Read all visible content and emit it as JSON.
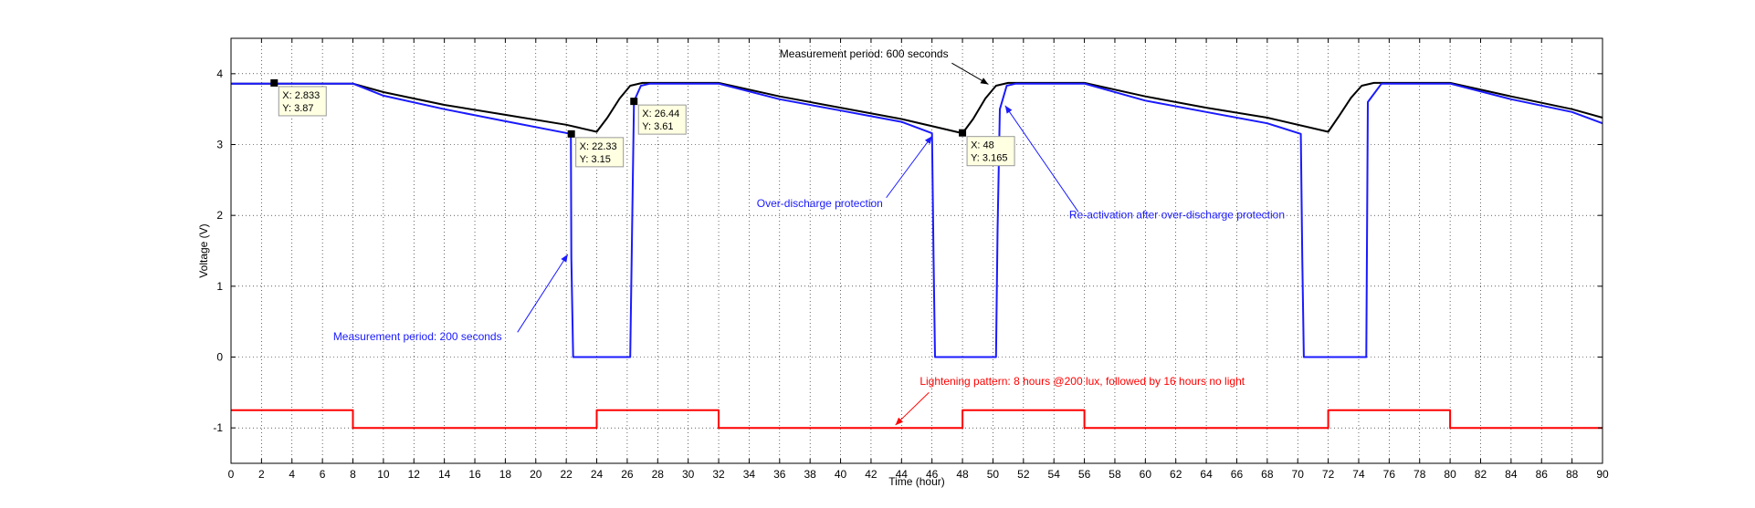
{
  "chart_data": {
    "type": "line",
    "title": "",
    "xlabel": "Time (hour)",
    "ylabel": "Voltage (V)",
    "xlim": [
      0,
      90
    ],
    "ylim": [
      -1.5,
      4.5
    ],
    "x_ticks": [
      "0",
      "2",
      "4",
      "6",
      "8",
      "10",
      "12",
      "14",
      "16",
      "18",
      "20",
      "22",
      "24",
      "26",
      "28",
      "30",
      "32",
      "34",
      "36",
      "38",
      "40",
      "42",
      "44",
      "46",
      "48",
      "50",
      "52",
      "54",
      "56",
      "58",
      "60",
      "62",
      "64",
      "66",
      "68",
      "70",
      "72",
      "74",
      "76",
      "78",
      "80",
      "82",
      "84",
      "86",
      "88",
      "90"
    ],
    "y_ticks": [
      "-1",
      "0",
      "1",
      "2",
      "3",
      "4"
    ],
    "grid": true,
    "colors": {
      "measurement_200s": "#1a1aff",
      "measurement_600s": "#000000",
      "lightening_pattern": "#ff0000"
    },
    "series": [
      {
        "key": "measurement_600s",
        "x": [
          0,
          8,
          10,
          14,
          18,
          22,
          24,
          24.7,
          25.5,
          26.2,
          27,
          32,
          36,
          40,
          44,
          48,
          48.7,
          49.5,
          50.2,
          51,
          56,
          60,
          64,
          68,
          72,
          72.7,
          73.5,
          74.2,
          75,
          80,
          84,
          88,
          90
        ],
        "y": [
          3.86,
          3.86,
          3.74,
          3.56,
          3.42,
          3.28,
          3.18,
          3.38,
          3.65,
          3.83,
          3.87,
          3.87,
          3.68,
          3.52,
          3.36,
          3.16,
          3.36,
          3.65,
          3.83,
          3.87,
          3.87,
          3.68,
          3.52,
          3.38,
          3.18,
          3.4,
          3.66,
          3.83,
          3.87,
          3.87,
          3.68,
          3.5,
          3.38
        ]
      },
      {
        "key": "measurement_200s",
        "x": [
          0,
          8,
          10,
          14,
          18,
          22.3,
          22.33,
          22.45,
          26.2,
          26.44,
          26.9,
          27.5,
          32,
          36,
          40,
          44,
          46,
          46.1,
          46.2,
          50.2,
          50.3,
          50.45,
          50.9,
          51.5,
          56,
          60,
          64,
          68,
          70.2,
          70.3,
          70.4,
          74.5,
          74.6,
          75.5,
          80,
          84,
          88,
          90
        ],
        "y": [
          3.86,
          3.86,
          3.69,
          3.5,
          3.33,
          3.15,
          1.4,
          0,
          0,
          3.61,
          3.83,
          3.86,
          3.86,
          3.64,
          3.48,
          3.32,
          3.16,
          1.4,
          0,
          0,
          1.8,
          3.5,
          3.83,
          3.86,
          3.86,
          3.62,
          3.46,
          3.3,
          3.15,
          1.4,
          0,
          0,
          3.6,
          3.86,
          3.86,
          3.64,
          3.46,
          3.3
        ]
      },
      {
        "key": "lightening_pattern",
        "x": [
          0,
          8,
          8,
          24,
          24,
          32,
          32,
          48,
          48,
          56,
          56,
          72,
          72,
          80,
          80,
          90
        ],
        "y": [
          -0.75,
          -0.75,
          -1,
          -1,
          -0.75,
          -0.75,
          -1,
          -1,
          -0.75,
          -0.75,
          -1,
          -1,
          -0.75,
          -0.75,
          -1,
          -1
        ]
      }
    ],
    "data_tips": [
      {
        "x": 2.833,
        "y": 3.87,
        "x_text": "X: 2.833",
        "y_text": "Y: 3.87"
      },
      {
        "x": 22.33,
        "y": 3.15,
        "x_text": "X: 22.33",
        "y_text": "Y: 3.15"
      },
      {
        "x": 26.44,
        "y": 3.61,
        "x_text": "X: 26.44",
        "y_text": "Y: 3.61"
      },
      {
        "x": 48,
        "y": 3.165,
        "x_text": "X: 48",
        "y_text": "Y: 3.165"
      }
    ],
    "annotations": [
      {
        "text": "Measurement period: 600 seconds",
        "color": "#000000",
        "tx": 36,
        "ty": 4.23,
        "ax": 49.7,
        "ay": 3.85,
        "arrow_from": [
          47.3,
          4.15
        ]
      },
      {
        "text": "Over-discharge protection",
        "color": "#1a1aff",
        "tx": 34.5,
        "ty": 2.12,
        "ax": 46.0,
        "ay": 3.12,
        "arrow_from": [
          43.0,
          2.25
        ]
      },
      {
        "text": "Re-activation after over-discharge protection",
        "color": "#1a1aff",
        "tx": 55,
        "ty": 1.96,
        "ax": 50.8,
        "ay": 3.55,
        "arrow_from": [
          55.6,
          2.05
        ]
      },
      {
        "text": "Measurement period: 200 seconds",
        "color": "#1a1aff",
        "tx": 6.7,
        "ty": 0.24,
        "ax": 22.1,
        "ay": 1.45,
        "arrow_from": [
          18.8,
          0.35
        ]
      },
      {
        "text": "Lightening pattern: 8 hours @200 lux, followed by 16 hours no light",
        "color": "#ff0000",
        "tx": 45.2,
        "ty": -0.39,
        "ax": 43.6,
        "ay": -0.96,
        "arrow_from": [
          45.8,
          -0.5
        ]
      }
    ]
  }
}
